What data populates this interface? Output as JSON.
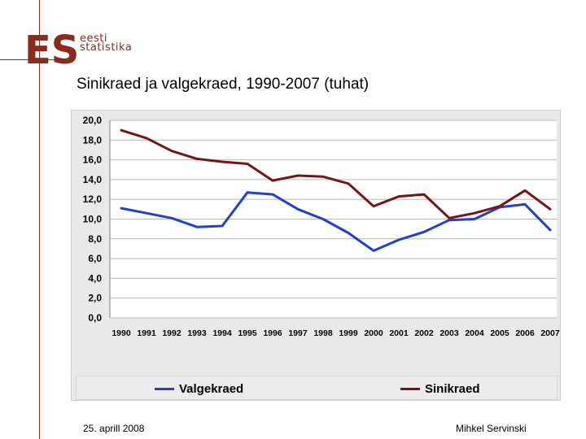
{
  "logo": {
    "mark": "ES",
    "line1": "eesti",
    "line2": "statistika"
  },
  "slide": {
    "title": "Sinikraed ja valgekraed, 1990-2007 (tuhat)"
  },
  "footer": {
    "date": "25. aprill 2008",
    "author": "Mihkel Servinski"
  },
  "colors": {
    "valgekraed": "#1f3fd6",
    "sinikraed": "#7a1414",
    "accent": "#8c2a1e"
  },
  "chart_data": {
    "type": "line",
    "title": "Sinikraed ja valgekraed, 1990-2007 (tuhat)",
    "categories": [
      "1990",
      "1991",
      "1992",
      "1993",
      "1994",
      "1995",
      "1996",
      "1997",
      "1998",
      "1999",
      "2000",
      "2001",
      "2002",
      "2003",
      "2004",
      "2005",
      "2006",
      "2007"
    ],
    "series": [
      {
        "name": "Valgekraed",
        "color": "#1f3fd6",
        "values": [
          11.1,
          10.6,
          10.1,
          9.2,
          9.3,
          12.7,
          12.5,
          11.0,
          10.0,
          8.6,
          6.8,
          7.9,
          8.7,
          9.9,
          10.0,
          11.2,
          11.5,
          8.9
        ]
      },
      {
        "name": "Sinikraed",
        "color": "#7a1414",
        "values": [
          19.0,
          18.2,
          16.9,
          16.1,
          15.8,
          15.6,
          13.9,
          14.4,
          14.3,
          13.6,
          11.3,
          12.3,
          12.5,
          10.1,
          10.6,
          11.3,
          12.9,
          11.0
        ]
      }
    ],
    "ylim": [
      0,
      20
    ],
    "yticks": [
      "0,0",
      "2,0",
      "4,0",
      "6,0",
      "8,0",
      "10,0",
      "12,0",
      "14,0",
      "16,0",
      "18,0",
      "20,0"
    ],
    "grid": true,
    "legend": "bottom"
  }
}
